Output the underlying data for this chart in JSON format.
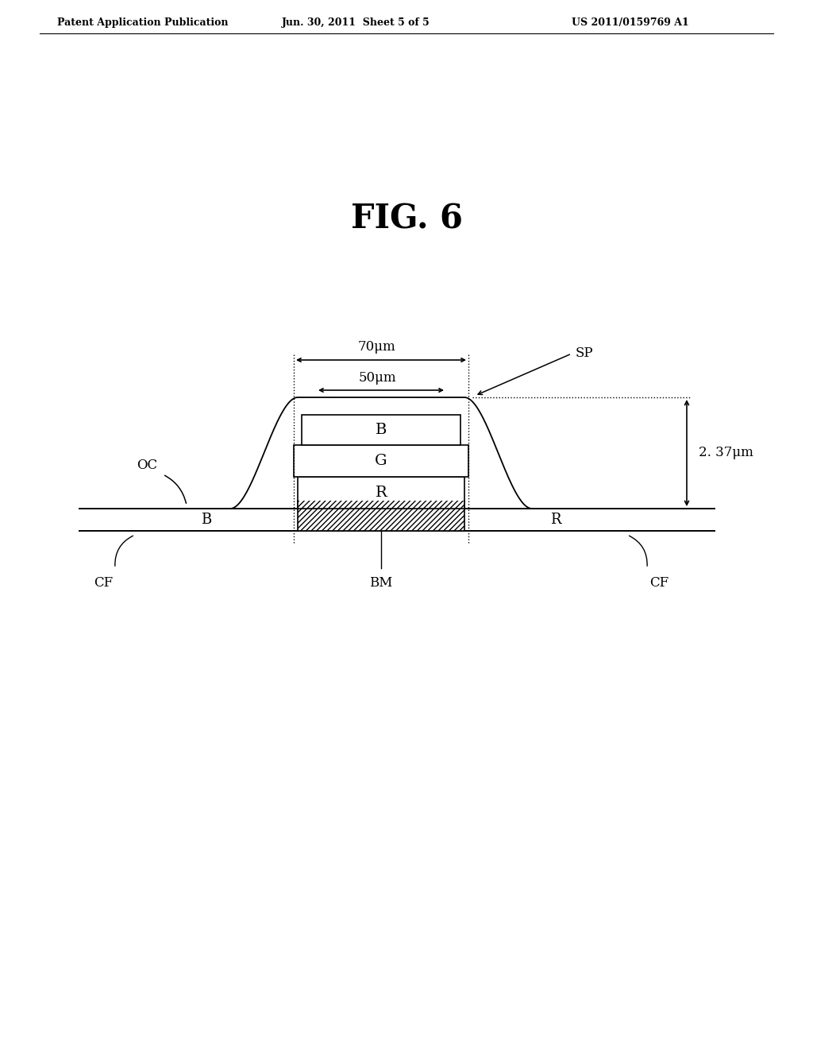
{
  "fig_title": "FIG. 6",
  "header_left": "Patent Application Publication",
  "header_center": "Jun. 30, 2011  Sheet 5 of 5",
  "header_right": "US 2011/0159769 A1",
  "background_color": "#ffffff",
  "text_color": "#000000",
  "label_OC": "OC",
  "label_B_left": "B",
  "label_R_right": "R",
  "label_CF_left": "CF",
  "label_CF_right": "CF",
  "label_BM": "BM",
  "label_SP": "SP",
  "label_70um": "70μm",
  "label_50um": "50μm",
  "label_237um": "2. 37μm",
  "layer_labels": [
    "B",
    "G",
    "R"
  ]
}
